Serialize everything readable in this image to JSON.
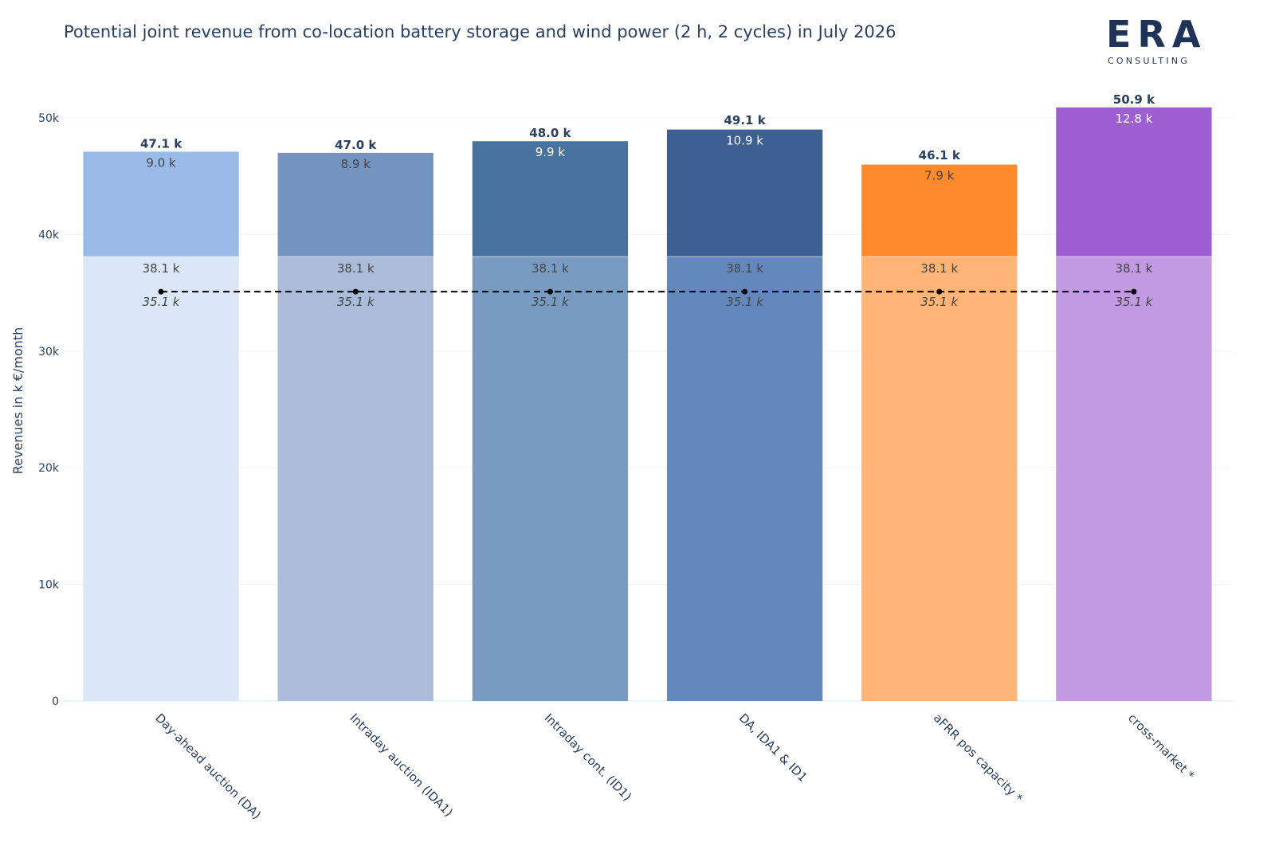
{
  "title": "Potential joint revenue from co-location battery storage and wind power (2 h, 2 cycles) in July 2026",
  "logo": {
    "main": "ERA",
    "sub": "CONSULTING"
  },
  "chart_data": {
    "type": "bar",
    "stacked": true,
    "title": "Potential joint revenue from co-location battery storage and wind power (2 h, 2 cycles) in July 2026",
    "xlabel": "",
    "ylabel": "Revenues in k €/month",
    "ylim": [
      0,
      51500
    ],
    "yticks": [
      0,
      10000,
      20000,
      30000,
      40000,
      50000
    ],
    "ytick_labels": [
      "0",
      "10k",
      "20k",
      "30k",
      "40k",
      "50k"
    ],
    "grid": true,
    "categories": [
      "Day-ahead auction (DA)",
      "Intraday auction (IDA1)",
      "Intraday cont. (ID1)",
      "DA, IDA1 & ID1",
      "aFRR pos capacity *",
      "cross-market *"
    ],
    "series": [
      {
        "role": "base",
        "values": [
          38100,
          38100,
          38100,
          38100,
          38100,
          38100
        ],
        "labels": [
          "38.1 k",
          "38.1 k",
          "38.1 k",
          "38.1 k",
          "38.1 k",
          "38.1 k"
        ],
        "colors": [
          "#dbe6f6",
          "#aabcd8",
          "#789bc1",
          "#6488bc",
          "#ffb478",
          "#c29ae2"
        ]
      },
      {
        "role": "battery",
        "values": [
          9000,
          8900,
          9900,
          10900,
          7900,
          12800
        ],
        "labels": [
          "9.0 k",
          "8.9 k",
          "9.9 k",
          "10.9 k",
          "7.9 k",
          "12.8 k"
        ],
        "colors": [
          "#9abae8",
          "#7593bf",
          "#48739f",
          "#3e5f92",
          "#ff8a2b",
          "#9d5fd2"
        ]
      }
    ],
    "totals": [
      47100,
      47000,
      48000,
      49100,
      46100,
      50900
    ],
    "total_labels": [
      "47.1 k",
      "47.0 k",
      "48.0 k",
      "49.1 k",
      "46.1 k",
      "50.9 k"
    ],
    "reference_line": {
      "value": 35100,
      "style": "dashed",
      "labels": [
        "35.1 k",
        "35.1 k",
        "35.1 k",
        "35.1 k",
        "35.1 k",
        "35.1 k"
      ]
    }
  }
}
